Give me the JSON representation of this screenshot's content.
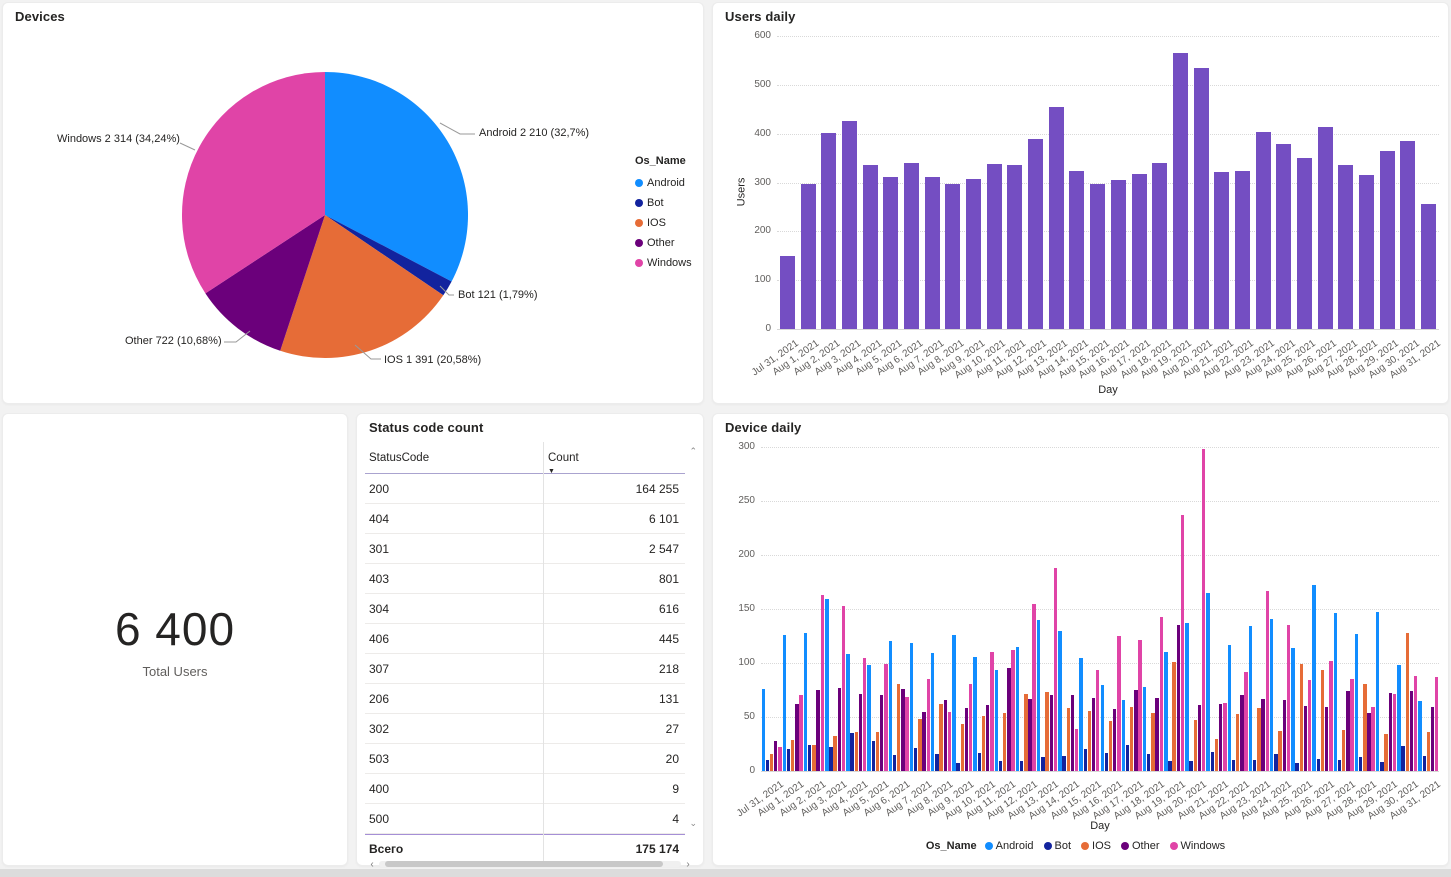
{
  "cards": {
    "devices": {
      "title": "Devices"
    },
    "users_daily": {
      "title": "Users daily"
    },
    "total_users": {
      "value": "6 400",
      "label": "Total Users"
    },
    "status_table": {
      "title": "Status code count",
      "columns": [
        "StatusCode",
        "Count"
      ],
      "sort": {
        "column": "Count",
        "direction": "desc"
      },
      "rows": [
        {
          "code": "200",
          "count": "164 255"
        },
        {
          "code": "404",
          "count": "6 101"
        },
        {
          "code": "301",
          "count": "2 547"
        },
        {
          "code": "403",
          "count": "801"
        },
        {
          "code": "304",
          "count": "616"
        },
        {
          "code": "406",
          "count": "445"
        },
        {
          "code": "307",
          "count": "218"
        },
        {
          "code": "206",
          "count": "131"
        },
        {
          "code": "302",
          "count": "27"
        },
        {
          "code": "503",
          "count": "20"
        },
        {
          "code": "400",
          "count": "9"
        },
        {
          "code": "500",
          "count": "4"
        }
      ],
      "total_row": {
        "code": "Всего",
        "count": "175 174"
      },
      "scroll_icons": {
        "up": "⌃",
        "down": "⌄",
        "left": "‹",
        "right": "›"
      }
    },
    "device_daily": {
      "title": "Device daily"
    }
  },
  "chart_data": [
    {
      "id": "devices-pie",
      "type": "pie",
      "title": "Devices",
      "legend_title": "Os_Name",
      "legend_position": "right",
      "labels": [
        "Android",
        "Bot",
        "IOS",
        "Other",
        "Windows"
      ],
      "values": [
        2210,
        121,
        1391,
        722,
        2314
      ],
      "percent_labels": [
        "32,7%",
        "1,79%",
        "20,58%",
        "10,68%",
        "34,24%"
      ],
      "data_labels": [
        "Android 2 210 (32,7%)",
        "Bot 121 (1,79%)",
        "IOS 1 391 (20,58%)",
        "Other 722 (10,68%)",
        "Windows 2 314 (34,24%)"
      ],
      "colors": [
        "#118DFF",
        "#12239E",
        "#E66C37",
        "#6B007B",
        "#E044A7"
      ]
    },
    {
      "id": "users-daily",
      "type": "bar",
      "title": "Users daily",
      "xlabel": "Day",
      "ylabel": "Users",
      "ylim": [
        0,
        600
      ],
      "yticks": [
        0,
        100,
        200,
        300,
        400,
        500,
        600
      ],
      "grid": "dotted horizontal",
      "bar_color": "#744EC2",
      "categories": [
        "Jul 31, 2021",
        "Aug 1, 2021",
        "Aug 2, 2021",
        "Aug 3, 2021",
        "Aug 4, 2021",
        "Aug 5, 2021",
        "Aug 6, 2021",
        "Aug 7, 2021",
        "Aug 8, 2021",
        "Aug 9, 2021",
        "Aug 10, 2021",
        "Aug 11, 2021",
        "Aug 12, 2021",
        "Aug 13, 2021",
        "Aug 14, 2021",
        "Aug 15, 2021",
        "Aug 16, 2021",
        "Aug 17, 2021",
        "Aug 18, 2021",
        "Aug 19, 2021",
        "Aug 20, 2021",
        "Aug 21, 2021",
        "Aug 22, 2021",
        "Aug 23, 2021",
        "Aug 24, 2021",
        "Aug 25, 2021",
        "Aug 26, 2021",
        "Aug 27, 2021",
        "Aug 28, 2021",
        "Aug 29, 2021",
        "Aug 30, 2021",
        "Aug 31, 2021"
      ],
      "values": [
        149,
        298,
        402,
        427,
        336,
        312,
        340,
        312,
        298,
        308,
        339,
        335,
        390,
        455,
        323,
        298,
        306,
        317,
        341,
        566,
        535,
        321,
        324,
        404,
        378,
        351,
        413,
        336,
        316,
        365,
        386,
        256
      ]
    },
    {
      "id": "device-daily",
      "type": "bar",
      "subtype": "grouped",
      "title": "Device daily",
      "xlabel": "Day",
      "legend_title": "Os_Name",
      "legend_position": "bottom",
      "ylim": [
        0,
        300
      ],
      "yticks": [
        0,
        50,
        100,
        150,
        200,
        250,
        300
      ],
      "grid": "dotted horizontal",
      "categories": [
        "Jul 31, 2021",
        "Aug 1, 2021",
        "Aug 2, 2021",
        "Aug 3, 2021",
        "Aug 4, 2021",
        "Aug 5, 2021",
        "Aug 6, 2021",
        "Aug 7, 2021",
        "Aug 8, 2021",
        "Aug 9, 2021",
        "Aug 10, 2021",
        "Aug 11, 2021",
        "Aug 12, 2021",
        "Aug 13, 2021",
        "Aug 14, 2021",
        "Aug 15, 2021",
        "Aug 16, 2021",
        "Aug 17, 2021",
        "Aug 18, 2021",
        "Aug 19, 2021",
        "Aug 20, 2021",
        "Aug 21, 2021",
        "Aug 22, 2021",
        "Aug 23, 2021",
        "Aug 24, 2021",
        "Aug 25, 2021",
        "Aug 26, 2021",
        "Aug 27, 2021",
        "Aug 28, 2021",
        "Aug 29, 2021",
        "Aug 30, 2021",
        "Aug 31, 2021"
      ],
      "series": [
        {
          "name": "Android",
          "color": "#118DFF",
          "values": [
            76,
            126,
            128,
            159,
            108,
            98,
            120,
            119,
            109,
            126,
            106,
            94,
            115,
            140,
            130,
            105,
            80,
            66,
            78,
            110,
            137,
            165,
            117,
            134,
            141,
            114,
            172,
            146,
            127,
            147,
            98,
            65
          ]
        },
        {
          "name": "Bot",
          "color": "#12239E",
          "values": [
            10,
            20,
            24,
            22,
            35,
            28,
            15,
            21,
            16,
            7,
            17,
            9,
            9,
            13,
            14,
            20,
            17,
            24,
            16,
            9,
            9,
            18,
            10,
            10,
            16,
            7,
            11,
            10,
            13,
            8,
            23,
            14
          ]
        },
        {
          "name": "IOS",
          "color": "#E66C37",
          "values": [
            16,
            29,
            24,
            32,
            36,
            36,
            81,
            48,
            62,
            44,
            51,
            54,
            71,
            73,
            58,
            56,
            46,
            59,
            54,
            101,
            47,
            30,
            53,
            58,
            37,
            99,
            94,
            38,
            81,
            34,
            128,
            36
          ]
        },
        {
          "name": "Other",
          "color": "#6B007B",
          "values": [
            28,
            62,
            75,
            77,
            71,
            70,
            76,
            55,
            66,
            58,
            61,
            95,
            67,
            70,
            70,
            68,
            57,
            75,
            68,
            135,
            61,
            62,
            70,
            67,
            66,
            60,
            59,
            74,
            54,
            72,
            74,
            59
          ]
        },
        {
          "name": "Windows",
          "color": "#E044A7",
          "values": [
            22,
            70,
            163,
            153,
            105,
            99,
            69,
            85,
            55,
            81,
            110,
            112,
            155,
            188,
            39,
            94,
            125,
            121,
            143,
            237,
            298,
            63,
            92,
            167,
            135,
            84,
            102,
            85,
            59,
            71,
            88,
            87
          ]
        }
      ]
    }
  ]
}
